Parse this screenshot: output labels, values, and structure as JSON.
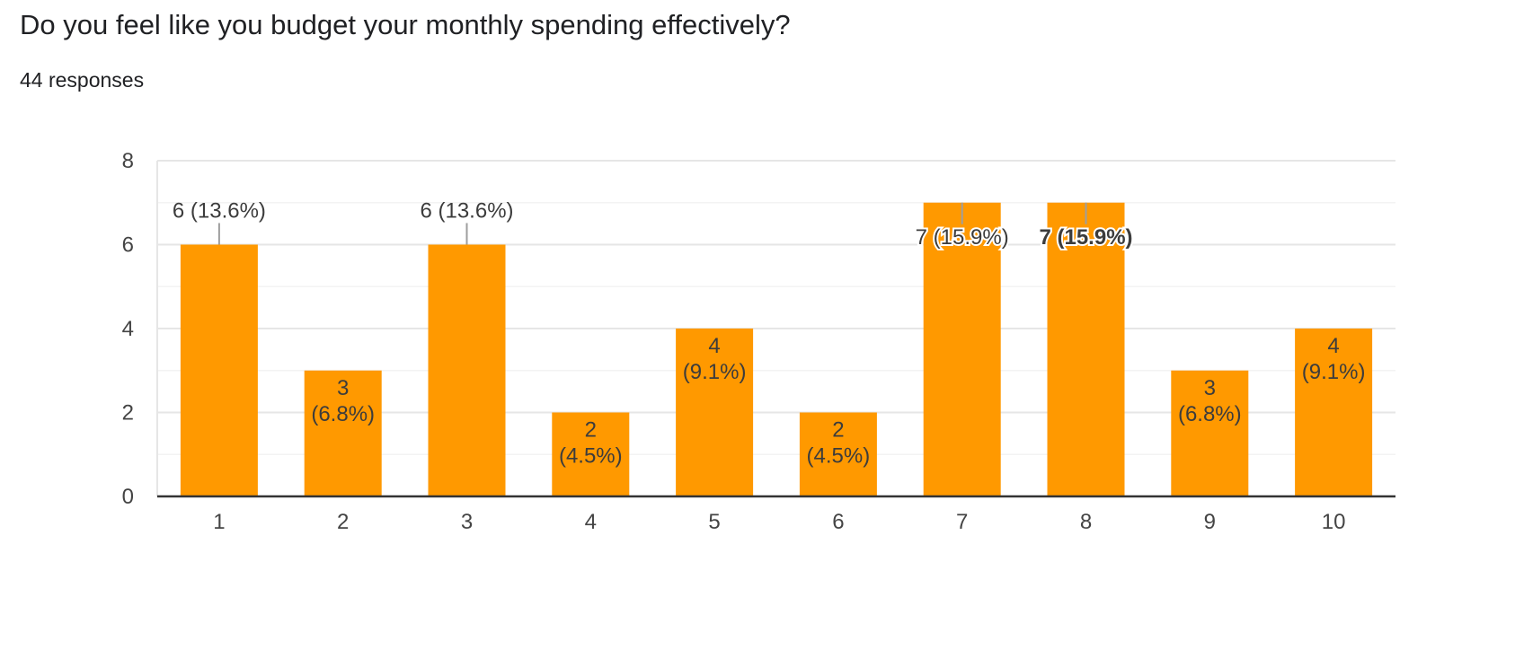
{
  "question": {
    "title": "Do you feel like you budget your monthly spending effectively?",
    "responses": "44 responses"
  },
  "colors": {
    "bar": "#ff9900",
    "axis": "#333333",
    "grid": "#e6e6e6",
    "minor_grid": "#f3f3f3",
    "text": "#202124"
  },
  "chart_data": {
    "type": "bar",
    "title": "Do you feel like you budget your monthly spending effectively?",
    "categories": [
      "1",
      "2",
      "3",
      "4",
      "5",
      "6",
      "7",
      "8",
      "9",
      "10"
    ],
    "values": [
      6,
      3,
      6,
      2,
      4,
      2,
      7,
      7,
      3,
      4
    ],
    "data_labels": [
      "6 (13.6%)",
      "3 (6.8%)",
      "6 (13.6%)",
      "2 (4.5%)",
      "4 (9.1%)",
      "2 (4.5%)",
      "7 (15.9%)",
      "7 (15.9%)",
      "3 (6.8%)",
      "4 (9.1%)"
    ],
    "y_ticks": [
      "0",
      "2",
      "4",
      "6",
      "8"
    ],
    "ylim": [
      0,
      8
    ],
    "xlabel": "",
    "ylabel": "",
    "grid": true,
    "legend": "none"
  }
}
